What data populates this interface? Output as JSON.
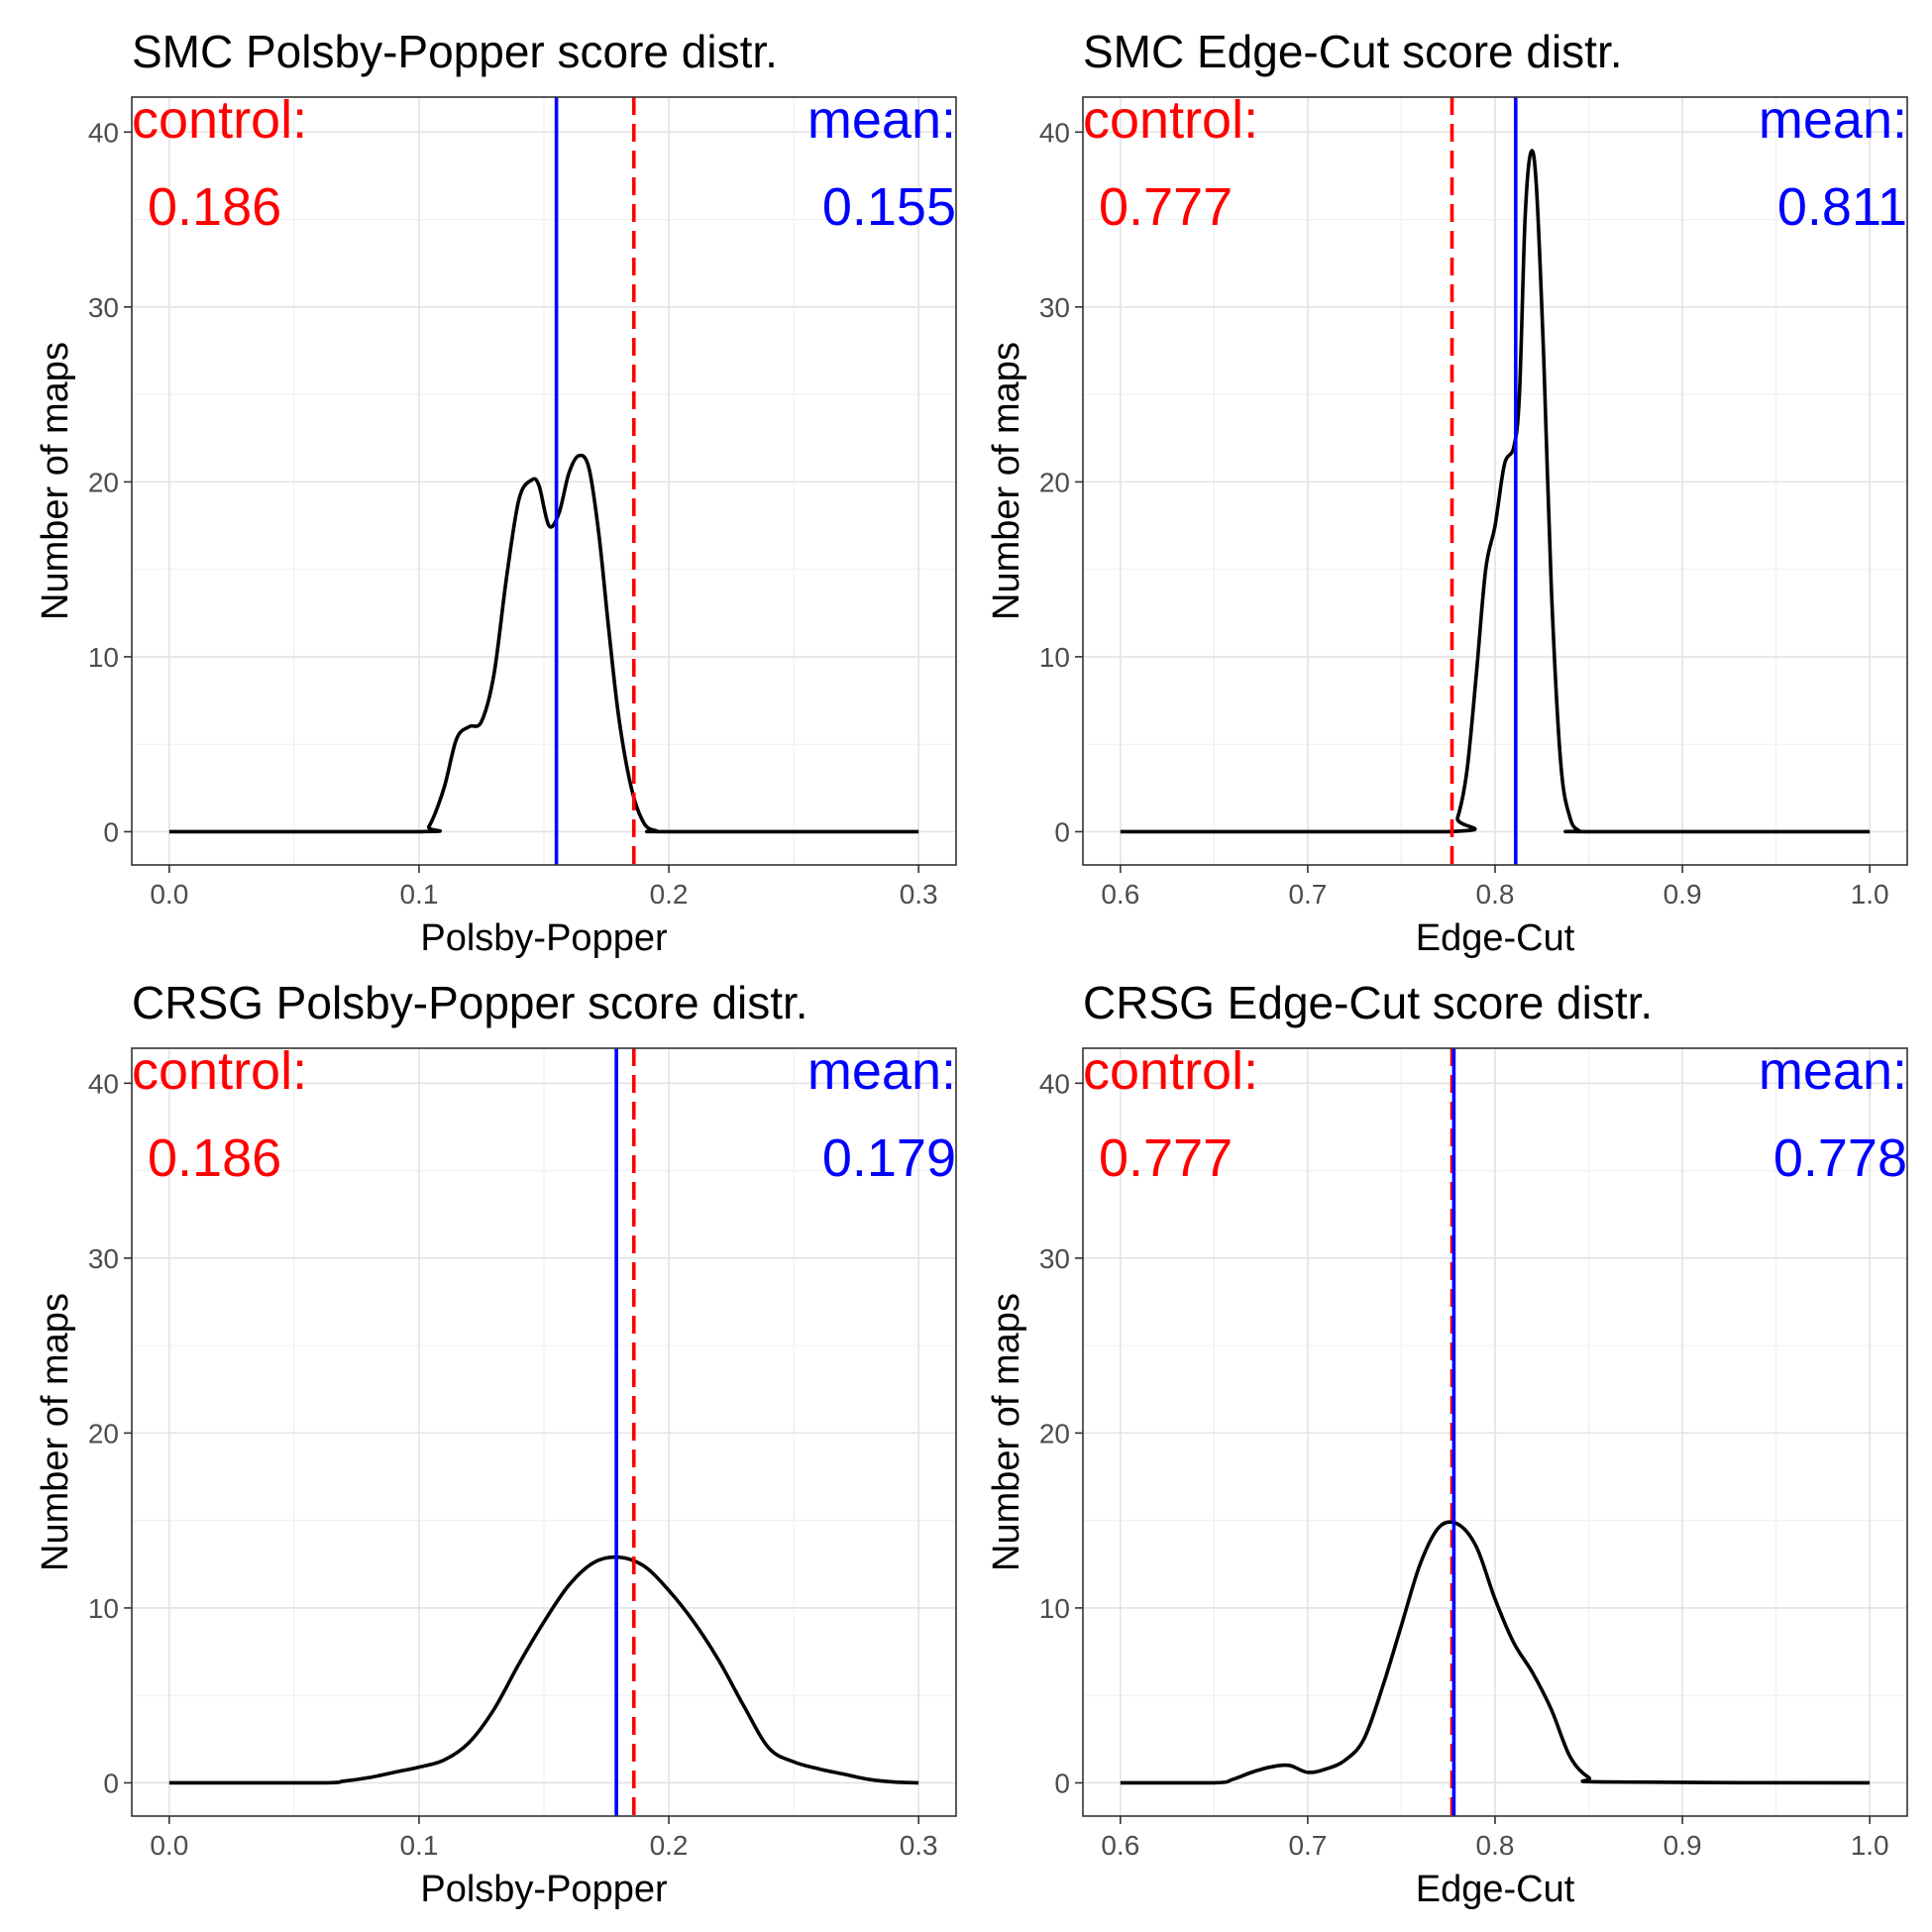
{
  "chart_data": [
    {
      "type": "line",
      "title": "SMC Polsby-Popper score distr.",
      "xlabel": "Polsby-Popper",
      "ylabel": "Number of maps",
      "xlim": [
        -0.015,
        0.315
      ],
      "ylim": [
        -1.9,
        42
      ],
      "xticks": [
        0.0,
        0.1,
        0.2,
        0.3
      ],
      "xtick_labels": [
        "0.0",
        "0.1",
        "0.2",
        "0.3"
      ],
      "yticks": [
        0,
        10,
        20,
        30,
        40
      ],
      "ytick_labels": [
        "0",
        "10",
        "20",
        "30",
        "40"
      ],
      "grid": true,
      "annotations": {
        "control_label": "control:",
        "control_value": "0.186",
        "mean_label": "mean:",
        "mean_value": "0.155"
      },
      "vlines": {
        "control": 0.186,
        "mean": 0.155
      },
      "colors": {
        "curve": "#000000",
        "control": "#ff0000",
        "mean": "#0000ff"
      },
      "x": [
        0.0,
        0.1,
        0.104,
        0.11,
        0.115,
        0.12,
        0.125,
        0.13,
        0.135,
        0.14,
        0.145,
        0.148,
        0.152,
        0.156,
        0.16,
        0.164,
        0.168,
        0.172,
        0.176,
        0.18,
        0.185,
        0.19,
        0.195,
        0.2,
        0.3
      ],
      "y": [
        0,
        0,
        0.3,
        2.5,
        5.3,
        6.0,
        6.3,
        9.0,
        14.5,
        19.0,
        20.1,
        19.8,
        17.5,
        18.2,
        20.5,
        21.5,
        20.8,
        17.0,
        11.5,
        6.5,
        2.5,
        0.5,
        0.05,
        0,
        0
      ]
    },
    {
      "type": "line",
      "title": "SMC Edge-Cut score distr.",
      "xlabel": "Edge-Cut",
      "ylabel": "Number of maps",
      "xlim": [
        0.58,
        1.02
      ],
      "ylim": [
        -1.9,
        42
      ],
      "xticks": [
        0.6,
        0.7,
        0.8,
        0.9,
        1.0
      ],
      "xtick_labels": [
        "0.6",
        "0.7",
        "0.8",
        "0.9",
        "1.0"
      ],
      "yticks": [
        0,
        10,
        20,
        30,
        40
      ],
      "ytick_labels": [
        "0",
        "10",
        "20",
        "30",
        "40"
      ],
      "grid": true,
      "annotations": {
        "control_label": "control:",
        "control_value": "0.777",
        "mean_label": "mean:",
        "mean_value": "0.811"
      },
      "vlines": {
        "control": 0.777,
        "mean": 0.811
      },
      "colors": {
        "curve": "#000000",
        "control": "#ff0000",
        "mean": "#0000ff"
      },
      "x": [
        0.6,
        0.775,
        0.78,
        0.785,
        0.79,
        0.795,
        0.8,
        0.805,
        0.81,
        0.813,
        0.816,
        0.819,
        0.822,
        0.826,
        0.83,
        0.835,
        0.84,
        0.845,
        0.85,
        1.0
      ],
      "y": [
        0,
        0,
        0.8,
        3.5,
        9.0,
        15.0,
        17.5,
        21.0,
        22.0,
        25.0,
        35.0,
        38.8,
        37.0,
        27.0,
        14.0,
        4.0,
        0.8,
        0.05,
        0,
        0
      ]
    },
    {
      "type": "line",
      "title": "CRSG Polsby-Popper score distr.",
      "xlabel": "Polsby-Popper",
      "ylabel": "Number of maps",
      "xlim": [
        -0.015,
        0.315
      ],
      "ylim": [
        -1.9,
        42
      ],
      "xticks": [
        0.0,
        0.1,
        0.2,
        0.3
      ],
      "xtick_labels": [
        "0.0",
        "0.1",
        "0.2",
        "0.3"
      ],
      "yticks": [
        0,
        10,
        20,
        30,
        40
      ],
      "ytick_labels": [
        "0",
        "10",
        "20",
        "30",
        "40"
      ],
      "grid": true,
      "annotations": {
        "control_label": "control:",
        "control_value": "0.186",
        "mean_label": "mean:",
        "mean_value": "0.179"
      },
      "vlines": {
        "control": 0.186,
        "mean": 0.179
      },
      "colors": {
        "curve": "#000000",
        "control": "#ff0000",
        "mean": "#0000ff"
      },
      "x": [
        0.0,
        0.06,
        0.07,
        0.08,
        0.09,
        0.1,
        0.11,
        0.12,
        0.13,
        0.14,
        0.15,
        0.16,
        0.17,
        0.18,
        0.19,
        0.2,
        0.21,
        0.22,
        0.23,
        0.24,
        0.25,
        0.26,
        0.27,
        0.28,
        0.29,
        0.3
      ],
      "y": [
        0,
        0,
        0.1,
        0.3,
        0.6,
        0.9,
        1.3,
        2.3,
        4.2,
        6.8,
        9.2,
        11.3,
        12.6,
        12.9,
        12.4,
        11.0,
        9.2,
        7.0,
        4.4,
        2.0,
        1.2,
        0.8,
        0.5,
        0.2,
        0.05,
        0
      ]
    },
    {
      "type": "line",
      "title": "CRSG Edge-Cut score distr.",
      "xlabel": "Edge-Cut",
      "ylabel": "Number of maps",
      "xlim": [
        0.58,
        1.02
      ],
      "ylim": [
        -1.9,
        42
      ],
      "xticks": [
        0.6,
        0.7,
        0.8,
        0.9,
        1.0
      ],
      "xtick_labels": [
        "0.6",
        "0.7",
        "0.8",
        "0.9",
        "1.0"
      ],
      "yticks": [
        0,
        10,
        20,
        30,
        40
      ],
      "ytick_labels": [
        "0",
        "10",
        "20",
        "30",
        "40"
      ],
      "grid": true,
      "annotations": {
        "control_label": "control:",
        "control_value": "0.777",
        "mean_label": "mean:",
        "mean_value": "0.778"
      },
      "vlines": {
        "control": 0.777,
        "mean": 0.778
      },
      "colors": {
        "curve": "#000000",
        "control": "#ff0000",
        "mean": "#0000ff"
      },
      "x": [
        0.6,
        0.65,
        0.66,
        0.67,
        0.68,
        0.69,
        0.7,
        0.71,
        0.72,
        0.73,
        0.74,
        0.75,
        0.76,
        0.77,
        0.78,
        0.79,
        0.8,
        0.81,
        0.82,
        0.83,
        0.84,
        0.85,
        0.86,
        1.0
      ],
      "y": [
        0,
        0,
        0.2,
        0.6,
        0.9,
        1.0,
        0.6,
        0.8,
        1.3,
        2.5,
        5.5,
        9.0,
        12.5,
        14.6,
        14.8,
        13.5,
        10.5,
        8.0,
        6.3,
        4.2,
        1.5,
        0.3,
        0.05,
        0
      ]
    }
  ]
}
